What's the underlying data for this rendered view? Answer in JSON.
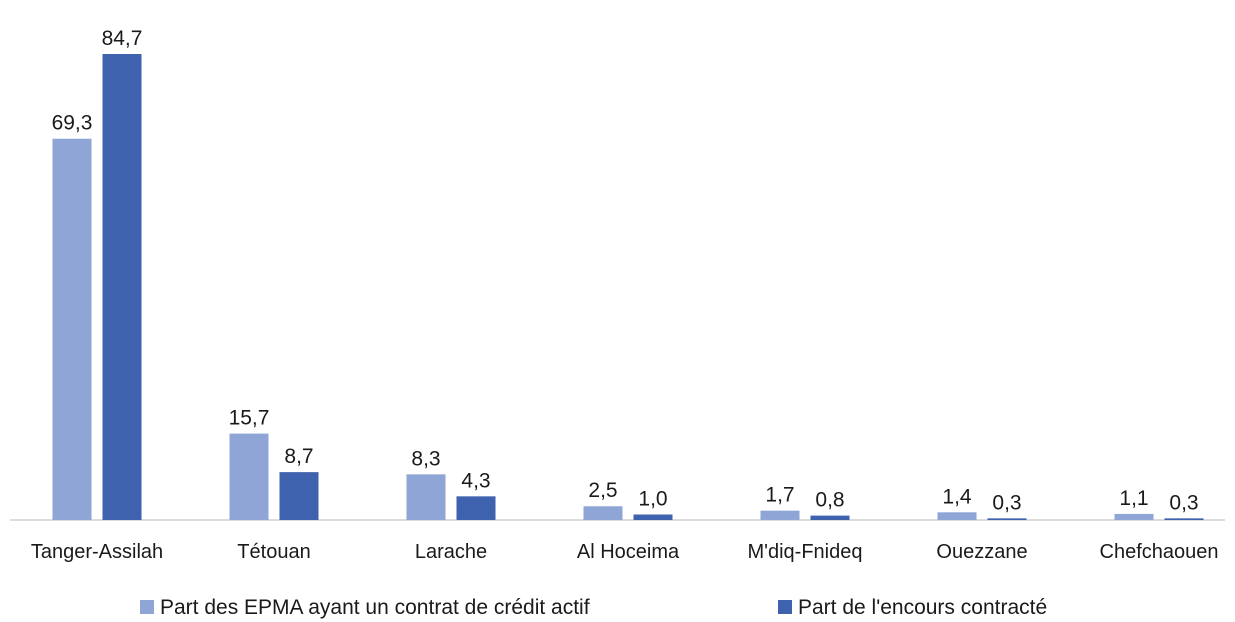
{
  "chart_data": {
    "type": "bar",
    "categories": [
      "Tanger-Assilah",
      "Tétouan",
      "Larache",
      "Al Hoceima",
      "M'diq-Fnideq",
      "Ouezzane",
      "Chefchaouen"
    ],
    "series": [
      {
        "name": "Part des EPMA ayant un contrat de crédit actif",
        "color": "#8fa5d5",
        "values": [
          69.3,
          15.7,
          8.3,
          2.5,
          1.7,
          1.4,
          1.1
        ],
        "labels": [
          "69,3",
          "15,7",
          "8,3",
          "2,5",
          "1,7",
          "1,4",
          "1,1"
        ]
      },
      {
        "name": "Part de l'encours contracté",
        "color": "#3e62ad",
        "values": [
          84.7,
          8.7,
          4.3,
          1.0,
          0.8,
          0.3,
          0.3
        ],
        "labels": [
          "84,7",
          "8,7",
          "4,3",
          "1,0",
          "0,8",
          "0,3",
          "0,3"
        ]
      }
    ],
    "title": "",
    "xlabel": "",
    "ylabel": "",
    "ylim": [
      0,
      85
    ],
    "grid": false,
    "legend_position": "bottom"
  }
}
